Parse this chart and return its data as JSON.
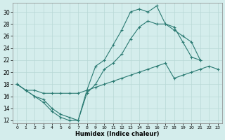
{
  "xlabel": "Humidex (Indice chaleur)",
  "background_color": "#d4edec",
  "grid_color": "#b8d8d6",
  "line_color": "#2a7a72",
  "xlim": [
    -0.5,
    23.5
  ],
  "ylim": [
    11.5,
    31.5
  ],
  "xticks": [
    0,
    1,
    2,
    3,
    4,
    5,
    6,
    7,
    8,
    9,
    10,
    11,
    12,
    13,
    14,
    15,
    16,
    17,
    18,
    19,
    20,
    21,
    22,
    23
  ],
  "yticks": [
    12,
    14,
    16,
    18,
    20,
    22,
    24,
    26,
    28,
    30
  ],
  "line1_x": [
    0,
    1,
    2,
    3,
    4,
    5,
    6,
    7,
    8,
    9,
    10,
    11,
    12,
    13,
    14,
    15,
    16,
    17,
    18,
    19,
    20,
    21
  ],
  "line1_y": [
    18.0,
    17.0,
    16.0,
    15.5,
    14.0,
    13.0,
    12.5,
    12.0,
    17.0,
    21.0,
    22.0,
    24.5,
    27.0,
    30.0,
    30.5,
    30.0,
    31.0,
    28.0,
    27.5,
    25.0,
    22.5,
    22.0
  ],
  "line2_x": [
    0,
    1,
    2,
    3,
    4,
    5,
    6,
    7,
    8,
    9,
    10,
    11,
    12,
    13,
    14,
    15,
    16,
    17,
    18,
    19,
    20,
    21
  ],
  "line2_y": [
    18.0,
    17.0,
    16.0,
    15.0,
    13.5,
    12.5,
    12.0,
    12.0,
    16.5,
    18.0,
    20.5,
    21.5,
    23.0,
    25.5,
    27.5,
    28.5,
    28.0,
    28.0,
    27.0,
    26.0,
    25.0,
    22.0
  ],
  "line3_x": [
    0,
    1,
    2,
    3,
    4,
    5,
    6,
    7,
    8,
    9,
    10,
    11,
    12,
    13,
    14,
    15,
    16,
    17,
    18,
    19,
    20,
    21,
    22,
    23
  ],
  "line3_y": [
    18.0,
    17.0,
    17.0,
    16.5,
    16.5,
    16.5,
    16.5,
    16.5,
    17.0,
    17.5,
    18.0,
    18.5,
    19.0,
    19.5,
    20.0,
    20.5,
    21.0,
    21.5,
    19.0,
    19.5,
    20.0,
    20.5,
    21.0,
    20.5
  ]
}
